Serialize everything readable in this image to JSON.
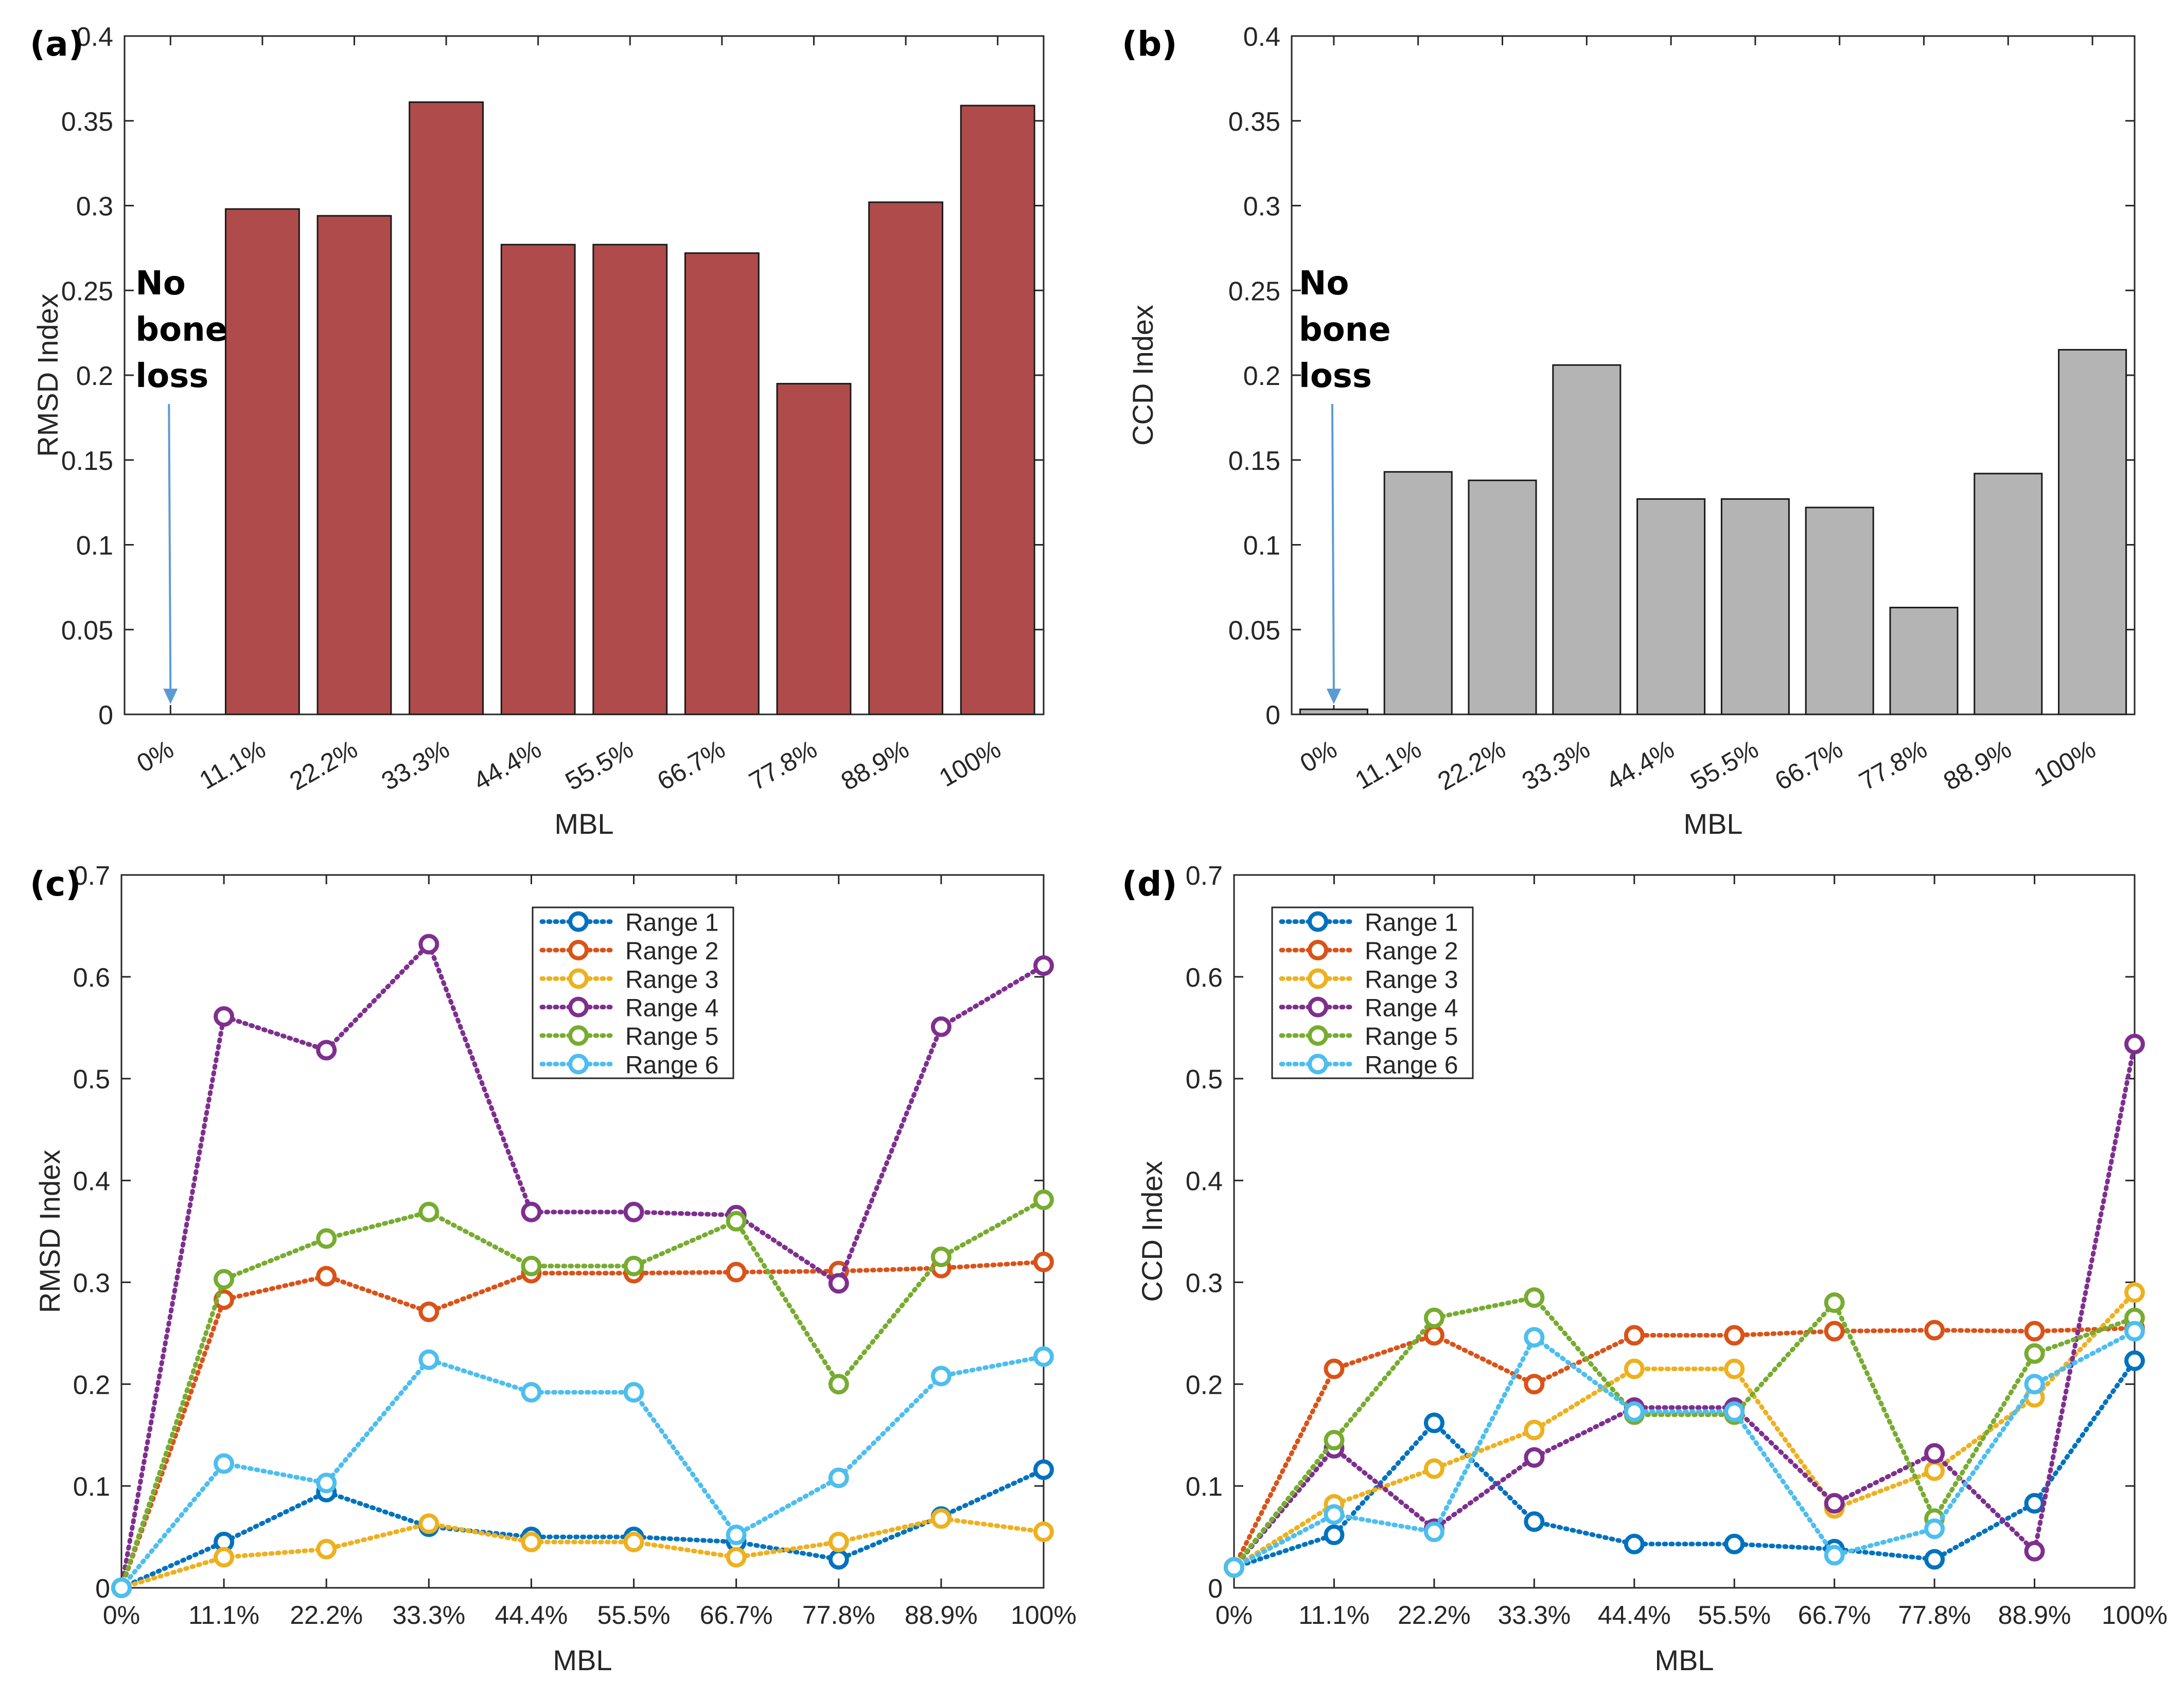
{
  "chart_data": [
    {
      "type": "bar",
      "panel": "(a)",
      "title": "",
      "xlabel": "MBL",
      "ylabel": "RMSD Index",
      "categories": [
        "0%",
        "11.1%",
        "22.2%",
        "33.3%",
        "44.4%",
        "55.5%",
        "66.7%",
        "77.8%",
        "88.9%",
        "100%"
      ],
      "values": [
        0,
        0.298,
        0.294,
        0.361,
        0.277,
        0.277,
        0.272,
        0.195,
        0.302,
        0.359
      ],
      "ylim": [
        0,
        0.4
      ],
      "yticks": [
        0,
        0.05,
        0.1,
        0.15,
        0.2,
        0.25,
        0.3,
        0.35,
        0.4
      ],
      "ytick_labels": [
        "0",
        "0.05",
        "0.1",
        "0.15",
        "0.2",
        "0.25",
        "0.3",
        "0.35",
        "0.4"
      ],
      "bar_color": "#b04b4b",
      "annotation": {
        "lines": [
          "No",
          "bone",
          "loss"
        ],
        "arrow_color": "#5b9bd5",
        "target_category": "0%"
      },
      "grid": false
    },
    {
      "type": "bar",
      "panel": "(b)",
      "title": "",
      "xlabel": "MBL",
      "ylabel": "CCD Index",
      "categories": [
        "0%",
        "11.1%",
        "22.2%",
        "33.3%",
        "44.4%",
        "55.5%",
        "66.7%",
        "77.8%",
        "88.9%",
        "100%"
      ],
      "values": [
        0.003,
        0.143,
        0.138,
        0.206,
        0.127,
        0.127,
        0.122,
        0.063,
        0.142,
        0.215
      ],
      "ylim": [
        0,
        0.4
      ],
      "yticks": [
        0,
        0.05,
        0.1,
        0.15,
        0.2,
        0.25,
        0.3,
        0.35,
        0.4
      ],
      "ytick_labels": [
        "0",
        "0.05",
        "0.1",
        "0.15",
        "0.2",
        "0.25",
        "0.3",
        "0.35",
        "0.4"
      ],
      "bar_color": "#b4b4b4",
      "annotation": {
        "lines": [
          "No",
          "bone",
          "loss"
        ],
        "arrow_color": "#5b9bd5",
        "target_category": "0%"
      },
      "grid": false
    },
    {
      "type": "line",
      "panel": "(c)",
      "title": "",
      "xlabel": "MBL",
      "ylabel": "RMSD Index",
      "categories": [
        "0%",
        "11.1%",
        "22.2%",
        "33.3%",
        "44.4%",
        "55.5%",
        "66.7%",
        "77.8%",
        "88.9%",
        "100%"
      ],
      "ylim": [
        0,
        0.7
      ],
      "yticks": [
        0,
        0.1,
        0.2,
        0.3,
        0.4,
        0.5,
        0.6,
        0.7
      ],
      "ytick_labels": [
        "0",
        "0.1",
        "0.2",
        "0.3",
        "0.4",
        "0.5",
        "0.6",
        "0.7"
      ],
      "legend_position": "top-center",
      "series": [
        {
          "name": "Range 1",
          "color": "#0072bd",
          "values": [
            0,
            0.045,
            0.094,
            0.06,
            0.05,
            0.05,
            0.045,
            0.028,
            0.07,
            0.116
          ]
        },
        {
          "name": "Range 2",
          "color": "#d95319",
          "values": [
            0,
            0.283,
            0.306,
            0.271,
            0.309,
            0.309,
            0.31,
            0.311,
            0.314,
            0.32
          ]
        },
        {
          "name": "Range 3",
          "color": "#edb120",
          "values": [
            0,
            0.03,
            0.038,
            0.063,
            0.045,
            0.045,
            0.03,
            0.045,
            0.068,
            0.055
          ]
        },
        {
          "name": "Range 4",
          "color": "#7e2f8e",
          "values": [
            0,
            0.561,
            0.528,
            0.632,
            0.369,
            0.369,
            0.366,
            0.299,
            0.551,
            0.611
          ]
        },
        {
          "name": "Range 5",
          "color": "#77ac30",
          "values": [
            0,
            0.303,
            0.343,
            0.369,
            0.316,
            0.316,
            0.36,
            0.2,
            0.325,
            0.381
          ]
        },
        {
          "name": "Range 6",
          "color": "#4dbeee",
          "values": [
            0,
            0.122,
            0.103,
            0.224,
            0.192,
            0.192,
            0.052,
            0.108,
            0.208,
            0.227
          ]
        }
      ],
      "grid": false
    },
    {
      "type": "line",
      "panel": "(d)",
      "title": "",
      "xlabel": "MBL",
      "ylabel": "CCD Index",
      "categories": [
        "0%",
        "11.1%",
        "22.2%",
        "33.3%",
        "44.4%",
        "55.5%",
        "66.7%",
        "77.8%",
        "88.9%",
        "100%"
      ],
      "ylim": [
        0,
        0.7
      ],
      "yticks": [
        0,
        0.1,
        0.2,
        0.3,
        0.4,
        0.5,
        0.6,
        0.7
      ],
      "ytick_labels": [
        "0",
        "0.1",
        "0.2",
        "0.3",
        "0.4",
        "0.5",
        "0.6",
        "0.7"
      ],
      "legend_position": "top-left",
      "series": [
        {
          "name": "Range 1",
          "color": "#0072bd",
          "values": [
            0.02,
            0.052,
            0.162,
            0.065,
            0.043,
            0.043,
            0.038,
            0.028,
            0.083,
            0.223
          ]
        },
        {
          "name": "Range 2",
          "color": "#d95319",
          "values": [
            0.02,
            0.215,
            0.248,
            0.2,
            0.248,
            0.248,
            0.252,
            0.253,
            0.252,
            0.255
          ]
        },
        {
          "name": "Range 3",
          "color": "#edb120",
          "values": [
            0.02,
            0.082,
            0.117,
            0.155,
            0.215,
            0.215,
            0.078,
            0.115,
            0.187,
            0.29
          ]
        },
        {
          "name": "Range 4",
          "color": "#7e2f8e",
          "values": [
            0.02,
            0.137,
            0.058,
            0.128,
            0.177,
            0.177,
            0.083,
            0.132,
            0.036,
            0.534
          ]
        },
        {
          "name": "Range 5",
          "color": "#77ac30",
          "values": [
            0.02,
            0.145,
            0.265,
            0.285,
            0.17,
            0.17,
            0.28,
            0.068,
            0.23,
            0.265
          ]
        },
        {
          "name": "Range 6",
          "color": "#4dbeee",
          "values": [
            0.02,
            0.072,
            0.055,
            0.246,
            0.173,
            0.173,
            0.032,
            0.058,
            0.2,
            0.252
          ]
        }
      ],
      "grid": false
    }
  ]
}
